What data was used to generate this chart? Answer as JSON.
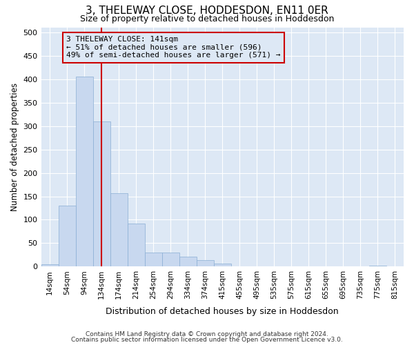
{
  "title": "3, THELEWAY CLOSE, HODDESDON, EN11 0ER",
  "subtitle": "Size of property relative to detached houses in Hoddesdon",
  "xlabel": "Distribution of detached houses by size in Hoddesdon",
  "ylabel": "Number of detached properties",
  "categories": [
    "14sqm",
    "54sqm",
    "94sqm",
    "134sqm",
    "174sqm",
    "214sqm",
    "254sqm",
    "294sqm",
    "334sqm",
    "374sqm",
    "415sqm",
    "455sqm",
    "495sqm",
    "535sqm",
    "575sqm",
    "615sqm",
    "655sqm",
    "695sqm",
    "735sqm",
    "775sqm",
    "815sqm"
  ],
  "values": [
    5,
    130,
    405,
    310,
    157,
    92,
    30,
    30,
    21,
    14,
    6,
    1,
    1,
    0,
    0,
    0,
    0,
    0,
    0,
    2,
    1
  ],
  "bar_color": "#c8d8ef",
  "bar_edge_color": "#8aaed4",
  "ref_line_x": 3.0,
  "ref_line_color": "#cc0000",
  "annotation_box_edge_color": "#cc0000",
  "annotation_line1": "3 THELEWAY CLOSE: 141sqm",
  "annotation_line2": "← 51% of detached houses are smaller (596)",
  "annotation_line3": "49% of semi-detached houses are larger (571) →",
  "ylim": [
    0,
    510
  ],
  "yticks": [
    0,
    50,
    100,
    150,
    200,
    250,
    300,
    350,
    400,
    450,
    500
  ],
  "bg_color": "#ffffff",
  "plot_bg_color": "#dde8f5",
  "grid_color": "#ffffff",
  "footer1": "Contains HM Land Registry data © Crown copyright and database right 2024.",
  "footer2": "Contains public sector information licensed under the Open Government Licence v3.0."
}
